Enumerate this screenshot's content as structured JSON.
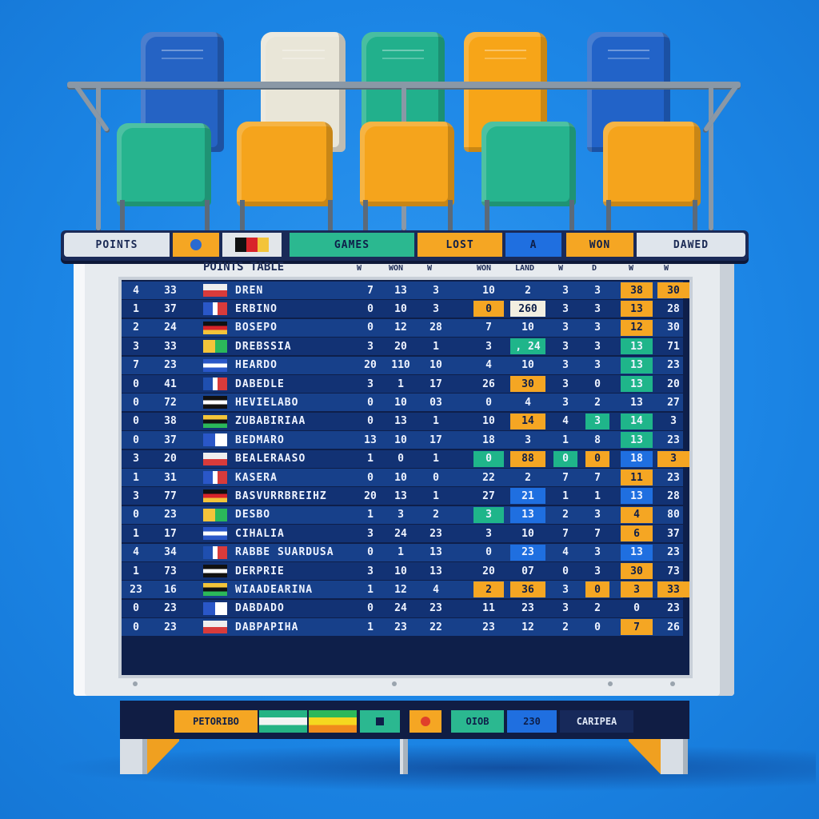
{
  "header": {
    "points_label": "POINTS",
    "games_label": "GAMES",
    "lost_label": "LOST",
    "a_label": "A",
    "won_label": "WON",
    "drawn_label": "DAWED"
  },
  "board": {
    "title": "POINTS TABLE",
    "columns": [
      "W",
      "WON",
      "W",
      "WON",
      "LAND",
      "W",
      "D",
      "W",
      "W"
    ],
    "rows": [
      {
        "c1": "4",
        "c2": "33",
        "name": "DREN",
        "v": [
          "7",
          "13",
          "3",
          "10",
          "2",
          "3",
          "3",
          "38",
          "30"
        ]
      },
      {
        "c1": "1",
        "c2": "37",
        "name": "ERBINO",
        "v": [
          "0",
          "10",
          "3",
          "0",
          "260",
          "3",
          "3",
          "13",
          "28"
        ]
      },
      {
        "c1": "2",
        "c2": "24",
        "name": "BOSEPO",
        "v": [
          "0",
          "12",
          "28",
          "7",
          "10",
          "3",
          "3",
          "12",
          "30"
        ]
      },
      {
        "c1": "3",
        "c2": "33",
        "name": "DREBSSIA",
        "v": [
          "3",
          "20",
          "1",
          "3",
          ", 24",
          "3",
          "3",
          "13",
          "71"
        ]
      },
      {
        "c1": "7",
        "c2": "23",
        "name": "HEARDO",
        "v": [
          "20",
          "110",
          "10",
          "4",
          "10",
          "3",
          "3",
          "13",
          "23"
        ]
      },
      {
        "c1": "0",
        "c2": "41",
        "name": "DABEDLE",
        "v": [
          "3",
          "1",
          "17",
          "26",
          "30",
          "3",
          "0",
          "13",
          "20"
        ]
      },
      {
        "c1": "0",
        "c2": "72",
        "name": "HEVIELABO",
        "v": [
          "0",
          "10",
          "03",
          "0",
          "4",
          "3",
          "2",
          "13",
          "27"
        ]
      },
      {
        "c1": "0",
        "c2": "38",
        "name": "ZUBABIRIAA",
        "v": [
          "0",
          "13",
          "1",
          "10",
          "14",
          "4",
          "3",
          "14",
          "3"
        ]
      },
      {
        "c1": "0",
        "c2": "37",
        "name": "BEDMARO",
        "v": [
          "13",
          "10",
          "17",
          "18",
          "3",
          "1",
          "8",
          "13",
          "23"
        ]
      },
      {
        "c1": "3",
        "c2": "20",
        "name": "BEALERAASO",
        "v": [
          "1",
          "0",
          "1",
          "0",
          "88",
          "0",
          "0",
          "18",
          "3"
        ]
      },
      {
        "c1": "1",
        "c2": "31",
        "name": "KASERA",
        "v": [
          "0",
          "10",
          "0",
          "22",
          "2",
          "7",
          "7",
          "11",
          "23"
        ]
      },
      {
        "c1": "3",
        "c2": "77",
        "name": "BASVURRBREIHZ",
        "v": [
          "20",
          "13",
          "1",
          "27",
          "21",
          "1",
          "1",
          "13",
          "28"
        ]
      },
      {
        "c1": "0",
        "c2": "23",
        "name": "DESBO",
        "v": [
          "1",
          "3",
          "2",
          "3",
          "13",
          "2",
          "3",
          "4",
          "80"
        ]
      },
      {
        "c1": "1",
        "c2": "17",
        "name": "CIHALIA",
        "v": [
          "3",
          "24",
          "23",
          "3",
          "10",
          "7",
          "7",
          "6",
          "37"
        ]
      },
      {
        "c1": "4",
        "c2": "34",
        "name": "RABBE SUARDUSA",
        "v": [
          "0",
          "1",
          "13",
          "0",
          "23",
          "4",
          "3",
          "13",
          "23"
        ]
      },
      {
        "c1": "1",
        "c2": "73",
        "name": "DERPRIE",
        "v": [
          "3",
          "10",
          "13",
          "20",
          "07",
          "0",
          "3",
          "30",
          "73"
        ]
      },
      {
        "c1": "23",
        "c2": "16",
        "name": "WIAADEARINA",
        "v": [
          "1",
          "12",
          "4",
          "2",
          "36",
          "3",
          "0",
          "3",
          "33"
        ]
      },
      {
        "c1": "0",
        "c2": "23",
        "name": "DABDADO",
        "v": [
          "0",
          "24",
          "23",
          "11",
          "23",
          "3",
          "2",
          "0",
          "23"
        ]
      },
      {
        "c1": "0",
        "c2": "23",
        "name": "DABPAPIHA",
        "v": [
          "1",
          "23",
          "22",
          "23",
          "12",
          "2",
          "0",
          "7",
          "26"
        ]
      }
    ]
  },
  "footer": {
    "label_1": "PETORIBO",
    "label_2": "OIOB",
    "label_3": "230",
    "label_4": "CARIPEA"
  },
  "colors": {
    "background": "#1e88e8",
    "board": "#0e1f4a",
    "orange": "#f5a623",
    "green": "#1fb58a",
    "blue": "#1f6fe0"
  }
}
